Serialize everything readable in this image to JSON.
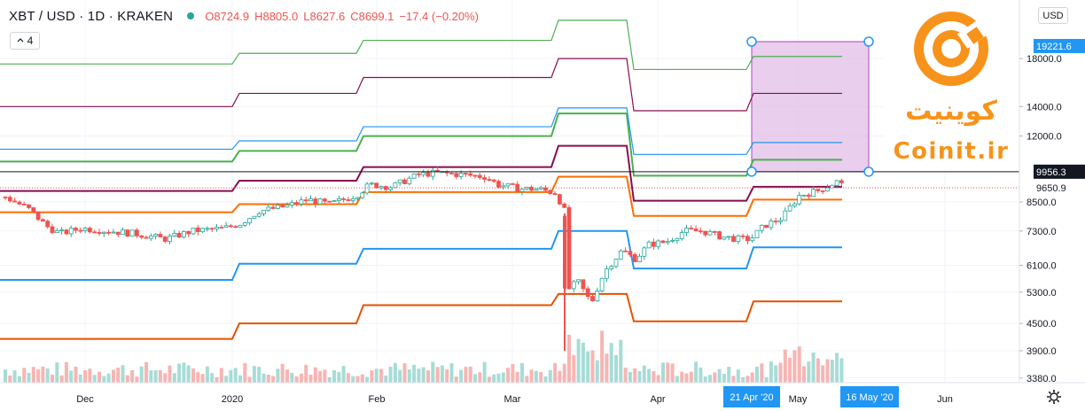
{
  "header": {
    "symbol": "XBT / USD · 1D · KRAKEN",
    "open": "O8724.9",
    "high": "H8805.0",
    "low": "L8627.6",
    "close": "C8699.1",
    "change": "−17.4 (−0.20%)",
    "indicator_count": "4",
    "currency_button": "USD"
  },
  "logo": {
    "text_fa": "کوینیت",
    "text_en": "Coinit.ir"
  },
  "colors": {
    "up": "#26a69a",
    "down": "#ef5350",
    "green": "#4caf50",
    "maroon": "#880e4f",
    "blue": "#2196f3",
    "orange": "#e65100",
    "lightOrange": "#ff6d00",
    "rect": "#e1bee7"
  },
  "chart_data": {
    "type": "candlestick",
    "price_axis_labels": [
      "18000.0",
      "14000.0",
      "12000.0",
      "8500.0",
      "7300.0",
      "6100.0",
      "5300.0",
      "4500.0",
      "3900.0",
      "3380.0"
    ],
    "price_axis_ticks": [
      18000,
      14000,
      12000,
      8500,
      7300,
      6100,
      5300,
      4500,
      3900,
      3380
    ],
    "price_range": [
      3300,
      22500
    ],
    "log_scale": true,
    "time_axis_labels": [
      "Dec",
      "2020",
      "Feb",
      "Mar",
      "Apr",
      "May",
      "Jun"
    ],
    "highlight_labels": {
      "price_1": "19221.6",
      "price_2": "9956.3",
      "last_price": "9650.9",
      "date_1": "21 Apr '20",
      "date_2": "16 May '20"
    },
    "annotation": {
      "type": "date-price-range",
      "date_from": "21 Apr '20",
      "date_to": "16 May '20",
      "price_from": 9956.3,
      "price_to": 19221.6
    },
    "series": [
      {
        "name": "",
        "color": "#4caf50",
        "steps": [
          [
            0,
            10500
          ],
          [
            270,
            11100
          ],
          [
            410,
            12000
          ],
          [
            630,
            13500
          ],
          [
            715,
            9750
          ],
          [
            850,
            10600
          ],
          [
            950,
            10600
          ]
        ]
      },
      {
        "name": "",
        "color": "#880e4f",
        "steps": [
          [
            0,
            9000
          ],
          [
            270,
            9500
          ],
          [
            410,
            10200
          ],
          [
            630,
            11400
          ],
          [
            715,
            8550
          ],
          [
            850,
            9200
          ],
          [
            950,
            9200
          ]
        ]
      },
      {
        "name": "",
        "color": "#2196f3",
        "steps": [
          [
            0,
            5650
          ],
          [
            270,
            6150
          ],
          [
            410,
            6650
          ],
          [
            630,
            7300
          ],
          [
            715,
            6000
          ],
          [
            850,
            6700
          ],
          [
            950,
            6700
          ]
        ]
      },
      {
        "name": "",
        "color": "#e65100",
        "steps": [
          [
            0,
            4150
          ],
          [
            270,
            4500
          ],
          [
            410,
            4950
          ],
          [
            630,
            5250
          ],
          [
            715,
            4550
          ],
          [
            850,
            5050
          ],
          [
            950,
            5050
          ]
        ]
      },
      {
        "name": "",
        "color": "#ff6d00",
        "steps": [
          [
            0,
            8050
          ],
          [
            270,
            8400
          ],
          [
            410,
            8950
          ],
          [
            630,
            9700
          ],
          [
            715,
            7900
          ],
          [
            850,
            8600
          ],
          [
            950,
            8600
          ]
        ]
      },
      {
        "name": "",
        "color": "#4caf50",
        "steps": [
          [
            0,
            17500
          ],
          [
            270,
            18500
          ],
          [
            410,
            19800
          ],
          [
            630,
            22000
          ],
          [
            715,
            17000
          ],
          [
            850,
            18200
          ],
          [
            950,
            18200
          ]
        ]
      },
      {
        "name": "",
        "color": "#880e4f",
        "steps": [
          [
            0,
            14000
          ],
          [
            270,
            15000
          ],
          [
            410,
            16300
          ],
          [
            630,
            18000
          ],
          [
            715,
            13700
          ],
          [
            850,
            15000
          ],
          [
            950,
            15000
          ]
        ]
      },
      {
        "name": "",
        "color": "#2196f3",
        "steps": [
          [
            0,
            11200
          ],
          [
            270,
            11700
          ],
          [
            410,
            12600
          ],
          [
            630,
            13900
          ],
          [
            715,
            10900
          ],
          [
            850,
            11600
          ],
          [
            950,
            11600
          ]
        ]
      }
    ],
    "close_path": [
      [
        5,
        8700
      ],
      [
        30,
        8200
      ],
      [
        50,
        7500
      ],
      [
        65,
        7200
      ],
      [
        90,
        7400
      ],
      [
        120,
        7300
      ],
      [
        150,
        7200
      ],
      [
        185,
        7000
      ],
      [
        215,
        7300
      ],
      [
        250,
        7400
      ],
      [
        270,
        7600
      ],
      [
        290,
        8100
      ],
      [
        320,
        8300
      ],
      [
        345,
        8600
      ],
      [
        370,
        8400
      ],
      [
        400,
        8800
      ],
      [
        415,
        9300
      ],
      [
        440,
        9200
      ],
      [
        470,
        9800
      ],
      [
        490,
        9900
      ],
      [
        520,
        9800
      ],
      [
        545,
        9700
      ],
      [
        560,
        9300
      ],
      [
        585,
        9100
      ],
      [
        605,
        9100
      ],
      [
        625,
        8900
      ],
      [
        635,
        8100
      ],
      [
        640,
        5400
      ],
      [
        650,
        5600
      ],
      [
        665,
        5000
      ],
      [
        680,
        5900
      ],
      [
        700,
        6600
      ],
      [
        715,
        6300
      ],
      [
        730,
        6800
      ],
      [
        750,
        6900
      ],
      [
        770,
        7300
      ],
      [
        790,
        7300
      ],
      [
        810,
        7100
      ],
      [
        830,
        7000
      ],
      [
        845,
        7000
      ],
      [
        860,
        7500
      ],
      [
        880,
        7800
      ],
      [
        900,
        8800
      ],
      [
        920,
        9000
      ],
      [
        935,
        9300
      ],
      [
        945,
        9500
      ],
      [
        952,
        8900
      ]
    ]
  }
}
